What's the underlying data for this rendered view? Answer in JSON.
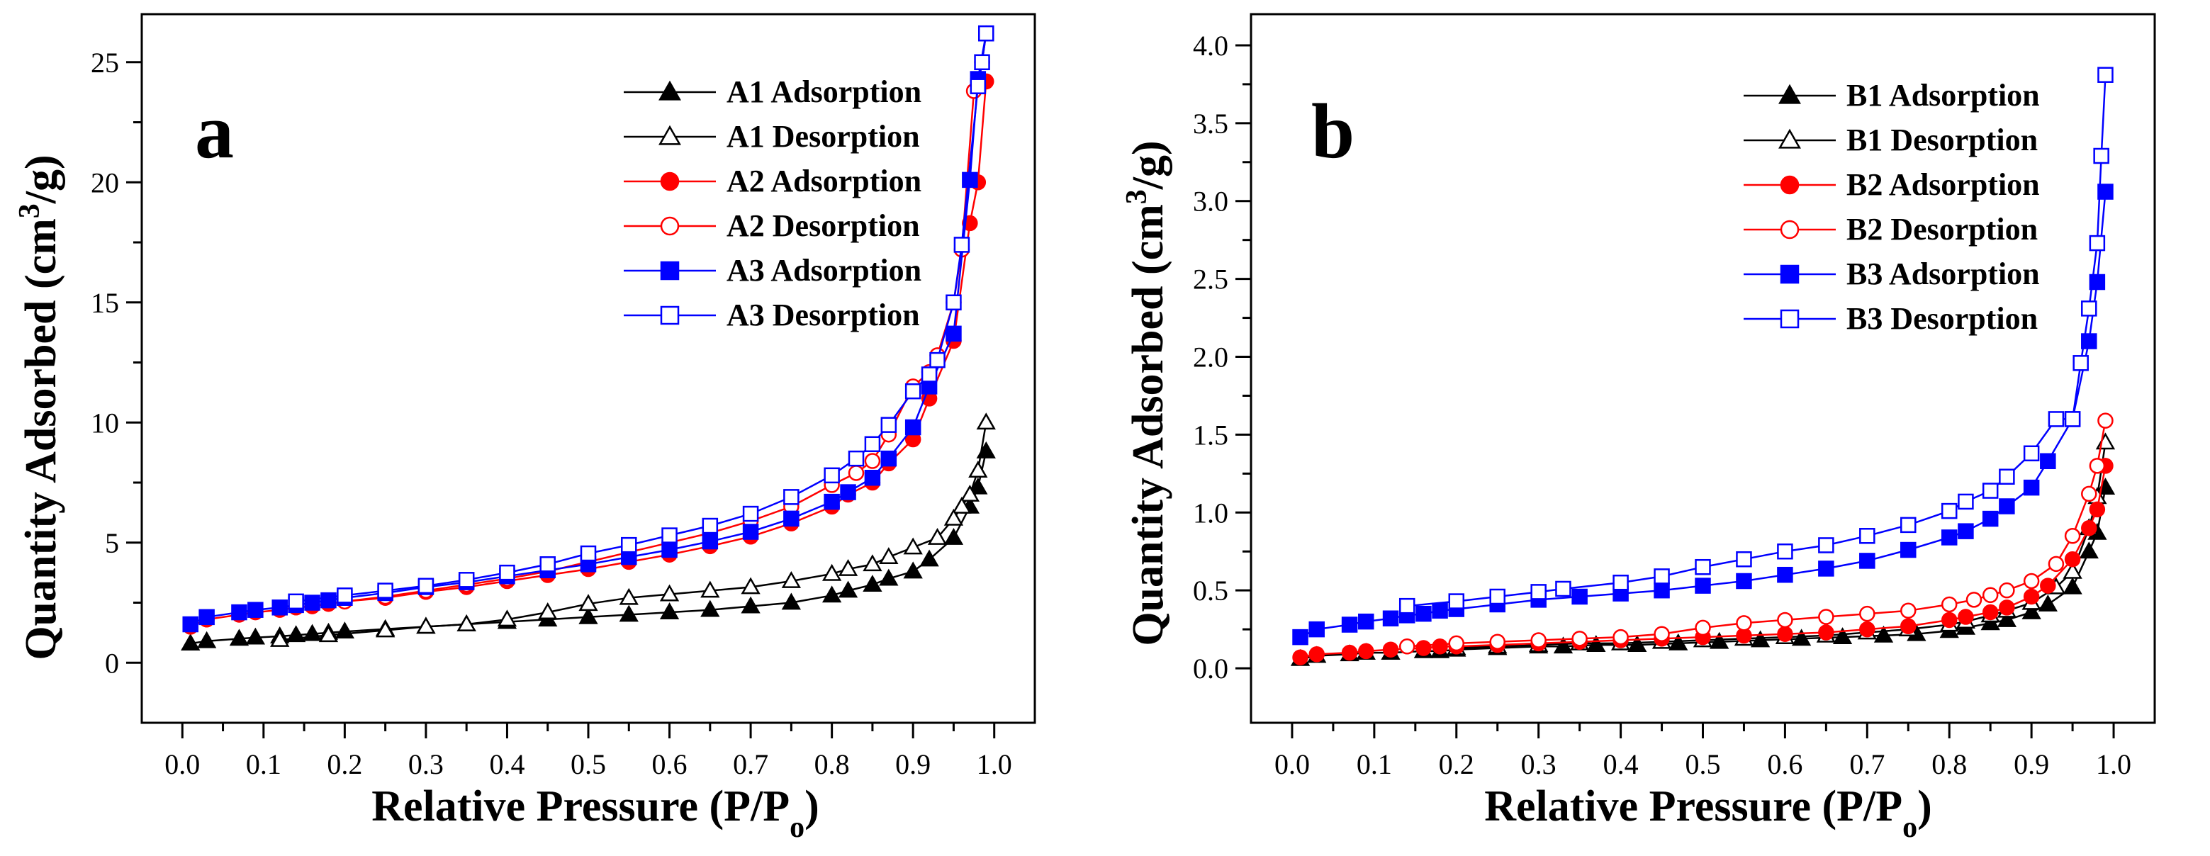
{
  "chart_data": [
    {
      "panel_letter": "a",
      "type": "line",
      "xlabel": "Relative Pressure (P/P",
      "xlabel_sub": "o",
      "xlabel_close": ")",
      "ylabel_part1": "Quantity Adsorbed (cm",
      "ylabel_sup": "3",
      "ylabel_part2": "/g)",
      "xlim": [
        -0.05,
        1.05
      ],
      "ylim": [
        -2.5,
        27
      ],
      "xticks": [
        0.0,
        0.1,
        0.2,
        0.3,
        0.4,
        0.5,
        0.6,
        0.7,
        0.8,
        0.9,
        1.0
      ],
      "xtick_labels": [
        "0.0",
        "0.1",
        "0.2",
        "0.3",
        "0.4",
        "0.5",
        "0.6",
        "0.7",
        "0.8",
        "0.9",
        "1.0"
      ],
      "yticks": [
        0,
        5,
        10,
        15,
        20,
        25
      ],
      "ytick_labels": [
        "0",
        "5",
        "10",
        "15",
        "20",
        "25"
      ],
      "legend_position": "top-right",
      "series": [
        {
          "name": "A1 Adsorption",
          "color": "#000000",
          "marker": "triangle",
          "filled": true,
          "x": [
            0.01,
            0.03,
            0.07,
            0.09,
            0.12,
            0.14,
            0.16,
            0.18,
            0.2,
            0.25,
            0.3,
            0.35,
            0.4,
            0.45,
            0.5,
            0.55,
            0.6,
            0.65,
            0.7,
            0.75,
            0.8,
            0.82,
            0.85,
            0.87,
            0.9,
            0.92,
            0.95,
            0.97,
            0.98,
            0.99
          ],
          "y": [
            0.8,
            0.9,
            1.0,
            1.05,
            1.1,
            1.15,
            1.2,
            1.25,
            1.3,
            1.4,
            1.5,
            1.6,
            1.7,
            1.8,
            1.9,
            2.0,
            2.1,
            2.2,
            2.35,
            2.5,
            2.8,
            3.0,
            3.25,
            3.5,
            3.8,
            4.3,
            5.2,
            6.5,
            7.3,
            8.8
          ]
        },
        {
          "name": "A1 Desorption",
          "color": "#000000",
          "marker": "triangle",
          "filled": false,
          "x": [
            0.99,
            0.98,
            0.97,
            0.96,
            0.95,
            0.93,
            0.9,
            0.87,
            0.85,
            0.82,
            0.8,
            0.75,
            0.7,
            0.65,
            0.6,
            0.55,
            0.5,
            0.45,
            0.4,
            0.35,
            0.3,
            0.25,
            0.18,
            0.12
          ],
          "y": [
            10.0,
            8.0,
            7.0,
            6.5,
            6.0,
            5.2,
            4.8,
            4.4,
            4.1,
            3.9,
            3.7,
            3.4,
            3.15,
            3.0,
            2.85,
            2.7,
            2.45,
            2.1,
            1.8,
            1.6,
            1.5,
            1.35,
            1.15,
            0.95
          ]
        },
        {
          "name": "A2 Adsorption",
          "color": "#ff0000",
          "marker": "circle",
          "filled": true,
          "x": [
            0.01,
            0.03,
            0.07,
            0.09,
            0.12,
            0.14,
            0.16,
            0.18,
            0.2,
            0.25,
            0.3,
            0.35,
            0.4,
            0.45,
            0.5,
            0.55,
            0.6,
            0.65,
            0.7,
            0.75,
            0.8,
            0.82,
            0.85,
            0.87,
            0.9,
            0.92,
            0.95,
            0.97,
            0.98,
            0.99
          ],
          "y": [
            1.5,
            1.8,
            2.0,
            2.1,
            2.2,
            2.3,
            2.35,
            2.45,
            2.55,
            2.7,
            2.95,
            3.15,
            3.4,
            3.65,
            3.9,
            4.2,
            4.5,
            4.85,
            5.25,
            5.8,
            6.5,
            7.0,
            7.5,
            8.3,
            9.3,
            11.0,
            13.4,
            18.3,
            20.0,
            24.2
          ]
        },
        {
          "name": "A2 Desorption",
          "color": "#ff0000",
          "marker": "circle",
          "filled": false,
          "x": [
            0.99,
            0.985,
            0.98,
            0.975,
            0.96,
            0.95,
            0.93,
            0.92,
            0.9,
            0.87,
            0.85,
            0.83,
            0.8,
            0.75,
            0.7,
            0.65,
            0.6,
            0.55,
            0.5,
            0.45,
            0.4,
            0.35,
            0.3,
            0.25,
            0.2
          ],
          "y": [
            26.2,
            25.0,
            24.0,
            23.8,
            17.2,
            15.0,
            12.8,
            12.1,
            11.5,
            9.5,
            8.4,
            7.9,
            7.4,
            6.5,
            5.9,
            5.4,
            5.0,
            4.6,
            4.2,
            3.8,
            3.5,
            3.25,
            3.0,
            2.75,
            2.55
          ]
        },
        {
          "name": "A3 Adsorption",
          "color": "#0000ff",
          "marker": "square",
          "filled": true,
          "x": [
            0.01,
            0.03,
            0.07,
            0.09,
            0.12,
            0.14,
            0.16,
            0.18,
            0.2,
            0.25,
            0.3,
            0.35,
            0.4,
            0.45,
            0.5,
            0.55,
            0.6,
            0.65,
            0.7,
            0.75,
            0.8,
            0.82,
            0.85,
            0.87,
            0.9,
            0.92,
            0.95,
            0.97,
            0.98,
            0.99
          ],
          "y": [
            1.6,
            1.9,
            2.1,
            2.2,
            2.3,
            2.4,
            2.5,
            2.6,
            2.7,
            2.9,
            3.15,
            3.35,
            3.6,
            3.85,
            4.1,
            4.4,
            4.7,
            5.05,
            5.45,
            6.0,
            6.7,
            7.1,
            7.7,
            8.5,
            9.8,
            11.5,
            13.7,
            20.1,
            24.3,
            26.2
          ]
        },
        {
          "name": "A3 Desorption",
          "color": "#0000ff",
          "marker": "square",
          "filled": false,
          "x": [
            0.99,
            0.985,
            0.98,
            0.96,
            0.95,
            0.93,
            0.92,
            0.9,
            0.87,
            0.85,
            0.83,
            0.8,
            0.75,
            0.7,
            0.65,
            0.6,
            0.55,
            0.5,
            0.45,
            0.4,
            0.35,
            0.3,
            0.25,
            0.2,
            0.14
          ],
          "y": [
            26.2,
            25.0,
            24.0,
            17.4,
            15.0,
            12.6,
            12.0,
            11.3,
            9.9,
            9.1,
            8.5,
            7.8,
            6.9,
            6.2,
            5.7,
            5.3,
            4.9,
            4.55,
            4.1,
            3.75,
            3.45,
            3.2,
            3.0,
            2.8,
            2.55
          ]
        }
      ]
    },
    {
      "panel_letter": "b",
      "type": "line",
      "xlabel": "Relative Pressure (P/P",
      "xlabel_sub": "o",
      "xlabel_close": ")",
      "ylabel_part1": "Quantity Adsorbed (cm",
      "ylabel_sup": "3",
      "ylabel_part2": "/g)",
      "xlim": [
        -0.05,
        1.05
      ],
      "ylim": [
        -0.35,
        4.2
      ],
      "xticks": [
        0.0,
        0.1,
        0.2,
        0.3,
        0.4,
        0.5,
        0.6,
        0.7,
        0.8,
        0.9,
        1.0
      ],
      "xtick_labels": [
        "0.0",
        "0.1",
        "0.2",
        "0.3",
        "0.4",
        "0.5",
        "0.6",
        "0.7",
        "0.8",
        "0.9",
        "1.0"
      ],
      "yticks": [
        0.0,
        0.5,
        1.0,
        1.5,
        2.0,
        2.5,
        3.0,
        3.5,
        4.0
      ],
      "ytick_labels": [
        "0.0",
        "0.5",
        "1.0",
        "1.5",
        "2.0",
        "2.5",
        "3.0",
        "3.5",
        "4.0"
      ],
      "legend_position": "top-right",
      "series": [
        {
          "name": "B1 Adsorption",
          "color": "#000000",
          "marker": "triangle",
          "filled": true,
          "x": [
            0.01,
            0.03,
            0.07,
            0.09,
            0.12,
            0.16,
            0.18,
            0.2,
            0.25,
            0.3,
            0.33,
            0.37,
            0.42,
            0.47,
            0.52,
            0.57,
            0.62,
            0.67,
            0.72,
            0.76,
            0.8,
            0.82,
            0.85,
            0.87,
            0.9,
            0.92,
            0.95,
            0.97,
            0.98,
            0.99
          ],
          "y": [
            0.06,
            0.08,
            0.09,
            0.1,
            0.1,
            0.11,
            0.11,
            0.12,
            0.13,
            0.14,
            0.14,
            0.15,
            0.15,
            0.16,
            0.17,
            0.18,
            0.19,
            0.2,
            0.21,
            0.22,
            0.24,
            0.26,
            0.29,
            0.31,
            0.36,
            0.41,
            0.52,
            0.75,
            0.87,
            1.16
          ]
        },
        {
          "name": "B1 Desorption",
          "color": "#000000",
          "marker": "triangle",
          "filled": false,
          "x": [
            0.99,
            0.98,
            0.97,
            0.95,
            0.93,
            0.9,
            0.87,
            0.85,
            0.82,
            0.8,
            0.75,
            0.7,
            0.65,
            0.6,
            0.55,
            0.5,
            0.45,
            0.4,
            0.35,
            0.3,
            0.25,
            0.2
          ],
          "y": [
            1.45,
            1.1,
            0.9,
            0.62,
            0.52,
            0.42,
            0.37,
            0.34,
            0.3,
            0.28,
            0.25,
            0.23,
            0.21,
            0.2,
            0.19,
            0.18,
            0.17,
            0.16,
            0.16,
            0.15,
            0.14,
            0.13
          ]
        },
        {
          "name": "B2 Adsorption",
          "color": "#ff0000",
          "marker": "circle",
          "filled": true,
          "x": [
            0.01,
            0.03,
            0.07,
            0.09,
            0.12,
            0.16,
            0.18,
            0.2,
            0.25,
            0.3,
            0.35,
            0.4,
            0.45,
            0.5,
            0.55,
            0.6,
            0.65,
            0.7,
            0.75,
            0.8,
            0.82,
            0.85,
            0.87,
            0.9,
            0.92,
            0.95,
            0.97,
            0.98,
            0.99
          ],
          "y": [
            0.07,
            0.09,
            0.1,
            0.11,
            0.12,
            0.13,
            0.14,
            0.14,
            0.15,
            0.16,
            0.17,
            0.18,
            0.19,
            0.2,
            0.21,
            0.22,
            0.23,
            0.25,
            0.27,
            0.31,
            0.33,
            0.36,
            0.39,
            0.46,
            0.53,
            0.7,
            0.9,
            1.02,
            1.3
          ]
        },
        {
          "name": "B2 Desorption",
          "color": "#ff0000",
          "marker": "circle",
          "filled": false,
          "x": [
            0.99,
            0.98,
            0.97,
            0.95,
            0.93,
            0.9,
            0.87,
            0.85,
            0.83,
            0.8,
            0.75,
            0.7,
            0.65,
            0.6,
            0.55,
            0.5,
            0.45,
            0.4,
            0.35,
            0.3,
            0.25,
            0.2,
            0.14
          ],
          "y": [
            1.59,
            1.3,
            1.12,
            0.85,
            0.67,
            0.56,
            0.5,
            0.47,
            0.44,
            0.41,
            0.37,
            0.35,
            0.33,
            0.31,
            0.29,
            0.26,
            0.22,
            0.2,
            0.19,
            0.18,
            0.17,
            0.16,
            0.14
          ]
        },
        {
          "name": "B3 Adsorption",
          "color": "#0000ff",
          "marker": "square",
          "filled": true,
          "x": [
            0.01,
            0.03,
            0.07,
            0.09,
            0.12,
            0.14,
            0.16,
            0.18,
            0.2,
            0.25,
            0.3,
            0.35,
            0.4,
            0.45,
            0.5,
            0.55,
            0.6,
            0.65,
            0.7,
            0.75,
            0.8,
            0.82,
            0.85,
            0.87,
            0.9,
            0.92,
            0.95,
            0.97,
            0.98,
            0.99
          ],
          "y": [
            0.2,
            0.25,
            0.28,
            0.3,
            0.32,
            0.34,
            0.35,
            0.37,
            0.38,
            0.41,
            0.44,
            0.46,
            0.48,
            0.5,
            0.53,
            0.56,
            0.6,
            0.64,
            0.69,
            0.76,
            0.84,
            0.88,
            0.96,
            1.04,
            1.16,
            1.33,
            1.6,
            2.1,
            2.48,
            3.06
          ]
        },
        {
          "name": "B3 Desorption",
          "color": "#0000ff",
          "marker": "square",
          "filled": false,
          "x": [
            0.99,
            0.985,
            0.98,
            0.97,
            0.96,
            0.95,
            0.93,
            0.9,
            0.87,
            0.85,
            0.82,
            0.8,
            0.75,
            0.7,
            0.65,
            0.6,
            0.55,
            0.5,
            0.45,
            0.4,
            0.33,
            0.3,
            0.25,
            0.2,
            0.14
          ],
          "y": [
            3.81,
            3.29,
            2.73,
            2.31,
            1.96,
            1.6,
            1.6,
            1.38,
            1.23,
            1.14,
            1.07,
            1.01,
            0.92,
            0.85,
            0.79,
            0.75,
            0.7,
            0.65,
            0.59,
            0.55,
            0.51,
            0.49,
            0.46,
            0.43,
            0.4
          ]
        }
      ]
    }
  ]
}
